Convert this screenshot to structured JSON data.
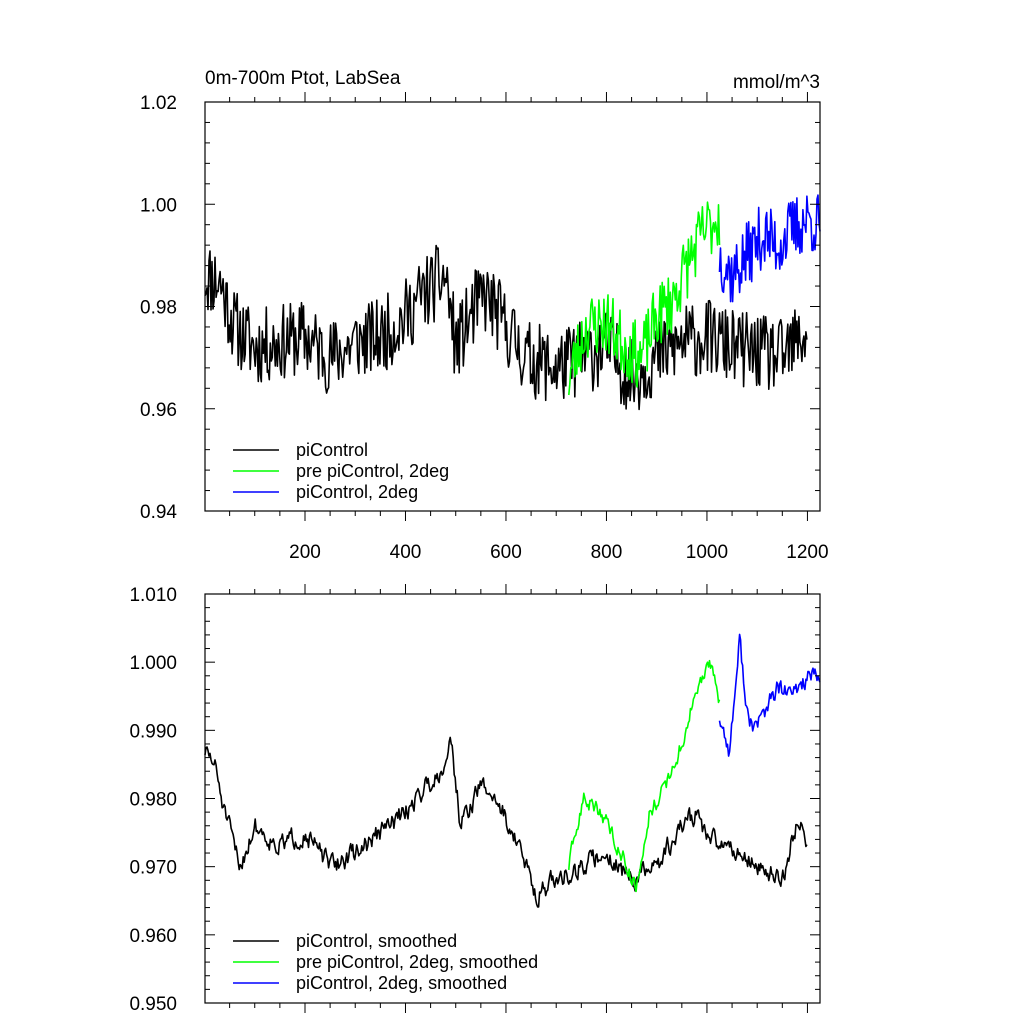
{
  "chart_data": [
    {
      "type": "line",
      "title_left": "0m-700m Ptot, LabSea",
      "title_right": "mmol/m^3",
      "xlim": [
        1,
        1225
      ],
      "ylim": [
        0.94,
        1.02
      ],
      "x_ticks": [
        "200",
        "400",
        "600",
        "800",
        "1000",
        "1200"
      ],
      "y_ticks": [
        "0.94",
        "0.96",
        "0.98",
        "1.00",
        "1.02"
      ],
      "legend_position": "bottom-left",
      "series": [
        {
          "name": "piControl",
          "color": "#000000",
          "x_start": 1,
          "x_end": 1200,
          "keypoints": [
            [
              1,
              0.986
            ],
            [
              30,
              0.985
            ],
            [
              60,
              0.976
            ],
            [
              100,
              0.972
            ],
            [
              150,
              0.973
            ],
            [
              200,
              0.974
            ],
            [
              250,
              0.97
            ],
            [
              300,
              0.973
            ],
            [
              350,
              0.974
            ],
            [
              400,
              0.978
            ],
            [
              430,
              0.982
            ],
            [
              480,
              0.986
            ],
            [
              500,
              0.972
            ],
            [
              540,
              0.98
            ],
            [
              560,
              0.982
            ],
            [
              600,
              0.976
            ],
            [
              640,
              0.97
            ],
            [
              700,
              0.968
            ],
            [
              750,
              0.97
            ],
            [
              800,
              0.972
            ],
            [
              850,
              0.966
            ],
            [
              900,
              0.97
            ],
            [
              950,
              0.973
            ],
            [
              1000,
              0.974
            ],
            [
              1050,
              0.972
            ],
            [
              1100,
              0.971
            ],
            [
              1150,
              0.97
            ],
            [
              1200,
              0.975
            ]
          ],
          "noise": 0.0075,
          "seed": 11
        },
        {
          "name": "pre piControl, 2deg",
          "color": "#00ff00",
          "x_start": 725,
          "x_end": 1025,
          "keypoints": [
            [
              725,
              0.966
            ],
            [
              760,
              0.976
            ],
            [
              800,
              0.977
            ],
            [
              840,
              0.972
            ],
            [
              870,
              0.97
            ],
            [
              900,
              0.978
            ],
            [
              930,
              0.981
            ],
            [
              960,
              0.988
            ],
            [
              990,
              0.994
            ],
            [
              1025,
              0.998
            ]
          ],
          "noise": 0.0065,
          "seed": 23
        },
        {
          "name": "piControl, 2deg",
          "color": "#0000ff",
          "x_start": 1025,
          "x_end": 1225,
          "keypoints": [
            [
              1025,
              0.99
            ],
            [
              1050,
              0.986
            ],
            [
              1080,
              0.99
            ],
            [
              1110,
              0.994
            ],
            [
              1140,
              0.992
            ],
            [
              1170,
              0.995
            ],
            [
              1200,
              0.997
            ],
            [
              1225,
              0.996
            ]
          ],
          "noise": 0.0065,
          "seed": 37
        }
      ]
    },
    {
      "type": "line",
      "xlim": [
        1,
        1225
      ],
      "ylim": [
        0.95,
        1.01
      ],
      "y_ticks": [
        "0.950",
        "0.960",
        "0.970",
        "0.980",
        "0.990",
        "1.000",
        "1.010"
      ],
      "legend_position": "bottom-left",
      "series": [
        {
          "name": "piControl, smoothed",
          "color": "#000000",
          "x_start": 1,
          "x_end": 1200,
          "keypoints": [
            [
              1,
              0.987
            ],
            [
              20,
              0.985
            ],
            [
              40,
              0.978
            ],
            [
              70,
              0.97
            ],
            [
              100,
              0.976
            ],
            [
              150,
              0.973
            ],
            [
              200,
              0.975
            ],
            [
              250,
              0.97
            ],
            [
              300,
              0.972
            ],
            [
              350,
              0.975
            ],
            [
              400,
              0.978
            ],
            [
              430,
              0.981
            ],
            [
              470,
              0.984
            ],
            [
              490,
              0.989
            ],
            [
              510,
              0.976
            ],
            [
              550,
              0.982
            ],
            [
              580,
              0.98
            ],
            [
              620,
              0.974
            ],
            [
              660,
              0.966
            ],
            [
              700,
              0.968
            ],
            [
              750,
              0.97
            ],
            [
              800,
              0.972
            ],
            [
              850,
              0.968
            ],
            [
              900,
              0.97
            ],
            [
              950,
              0.976
            ],
            [
              980,
              0.978
            ],
            [
              1000,
              0.974
            ],
            [
              1050,
              0.973
            ],
            [
              1100,
              0.97
            ],
            [
              1150,
              0.968
            ],
            [
              1180,
              0.977
            ],
            [
              1200,
              0.974
            ]
          ],
          "noise": 0.0028,
          "seed": 51
        },
        {
          "name": "pre piControl, 2deg, smoothed",
          "color": "#00ff00",
          "x_start": 725,
          "x_end": 1025,
          "keypoints": [
            [
              725,
              0.97
            ],
            [
              755,
              0.98
            ],
            [
              790,
              0.978
            ],
            [
              830,
              0.972
            ],
            [
              860,
              0.967
            ],
            [
              885,
              0.978
            ],
            [
              920,
              0.982
            ],
            [
              950,
              0.988
            ],
            [
              980,
              0.996
            ],
            [
              1010,
              1.0
            ],
            [
              1025,
              0.994
            ]
          ],
          "noise": 0.0022,
          "seed": 63
        },
        {
          "name": "piControl, 2deg, smoothed",
          "color": "#0000ff",
          "x_start": 1025,
          "x_end": 1225,
          "keypoints": [
            [
              1025,
              0.992
            ],
            [
              1045,
              0.987
            ],
            [
              1065,
              1.003
            ],
            [
              1085,
              0.99
            ],
            [
              1110,
              0.992
            ],
            [
              1140,
              0.996
            ],
            [
              1170,
              0.995
            ],
            [
              1200,
              0.998
            ],
            [
              1225,
              0.997
            ]
          ],
          "noise": 0.0028,
          "seed": 77
        }
      ]
    }
  ]
}
